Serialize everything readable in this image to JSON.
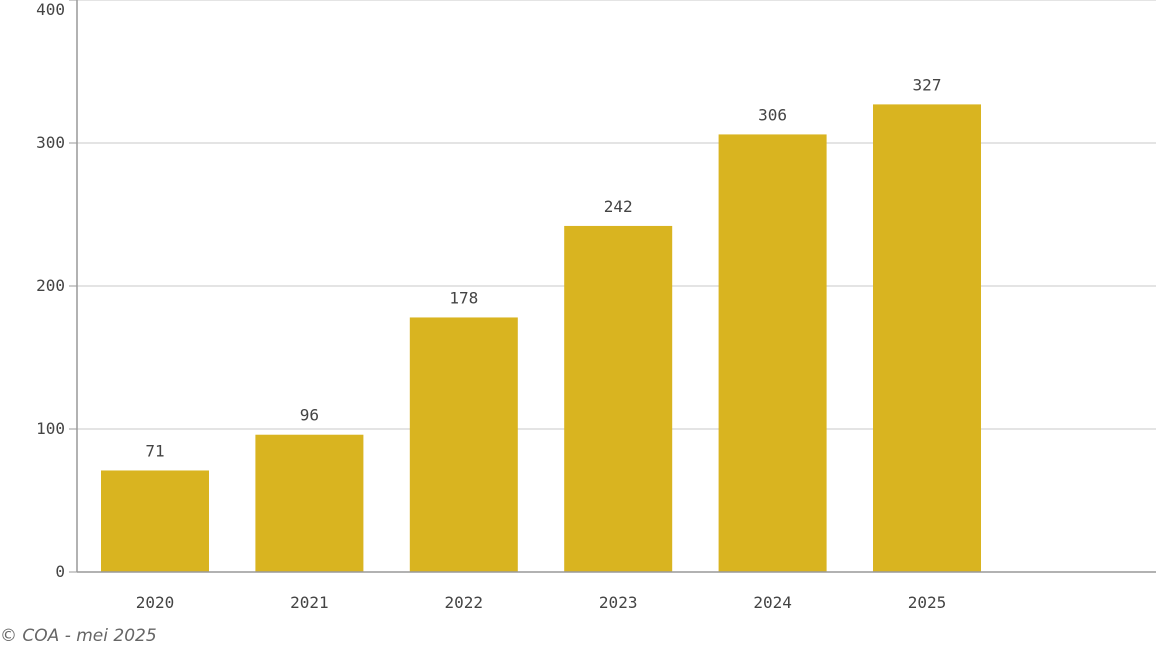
{
  "chart_data": {
    "type": "bar",
    "categories": [
      "2020",
      "2021",
      "2022",
      "2023",
      "2024",
      "2025"
    ],
    "values": [
      71,
      96,
      178,
      242,
      306,
      327
    ],
    "ylim": [
      0,
      400
    ],
    "yticks": [
      0,
      100,
      200,
      300,
      400
    ],
    "grid": true,
    "bar_color": "#d9b420",
    "data_labels": true
  },
  "footer": {
    "credit": "© COA - mei 2025"
  }
}
